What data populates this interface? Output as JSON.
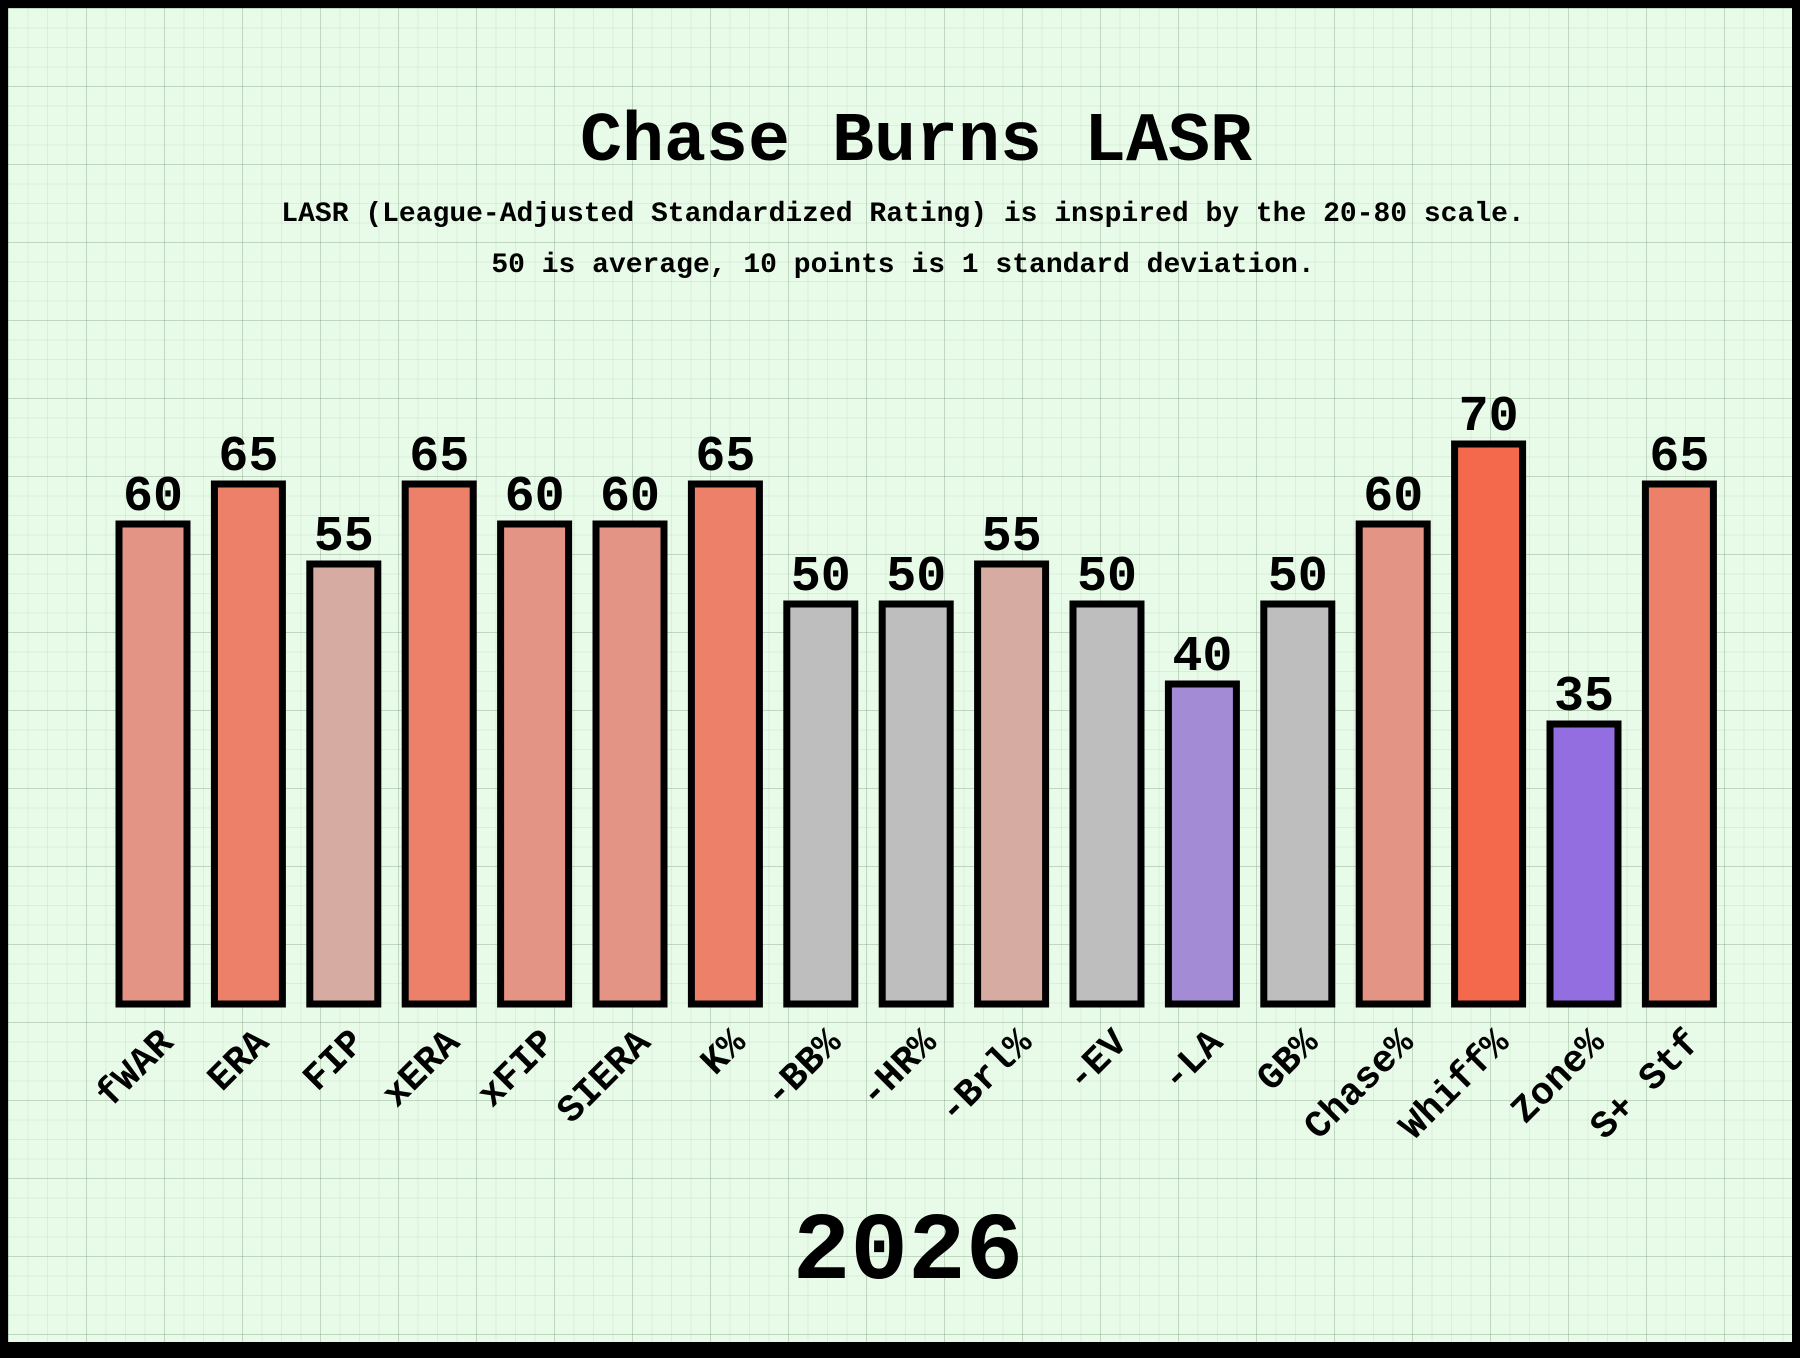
{
  "chart_data": {
    "type": "bar",
    "title": "Chase Burns LASR",
    "subtitle_lines": [
      "LASR (League-Adjusted Standardized Rating) is inspired by the 20-80 scale.",
      "50 is average, 10 points is 1 standard deviation."
    ],
    "footer": "2026",
    "categories": [
      "fWAR",
      "ERA",
      "FIP",
      "xERA",
      "xFIP",
      "SIERA",
      "K%",
      "-BB%",
      "-HR%",
      "-Brl%",
      "-EV",
      "-LA",
      "GB%",
      "Chase%",
      "Whiff%",
      "Zone%",
      "S+ Stf"
    ],
    "values": [
      60,
      65,
      55,
      65,
      60,
      60,
      65,
      50,
      50,
      55,
      50,
      40,
      50,
      60,
      70,
      35,
      65
    ],
    "colors": [
      "#e49484",
      "#ec8068",
      "#d6aba2",
      "#ec8068",
      "#e49484",
      "#e49484",
      "#ec8068",
      "#bebebe",
      "#bebebe",
      "#d6aba2",
      "#bebebe",
      "#a38bd6",
      "#bebebe",
      "#e49484",
      "#f4694b",
      "#936ee0",
      "#ec8068"
    ],
    "ylim": [
      0,
      70
    ],
    "grid": true,
    "legend": "none"
  }
}
